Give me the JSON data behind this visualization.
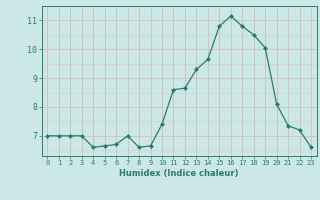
{
  "x": [
    0,
    1,
    2,
    3,
    4,
    5,
    6,
    7,
    8,
    9,
    10,
    11,
    12,
    13,
    14,
    15,
    16,
    17,
    18,
    19,
    20,
    21,
    22,
    23
  ],
  "y": [
    7.0,
    7.0,
    7.0,
    7.0,
    6.6,
    6.65,
    6.7,
    7.0,
    6.6,
    6.65,
    7.4,
    8.6,
    8.65,
    9.3,
    9.65,
    10.8,
    11.15,
    10.8,
    10.5,
    10.05,
    8.1,
    7.35,
    7.2,
    6.6
  ],
  "xlim": [
    -0.5,
    23.5
  ],
  "ylim": [
    6.3,
    11.5
  ],
  "yticks": [
    7,
    8,
    9,
    10,
    11
  ],
  "xticks": [
    0,
    1,
    2,
    3,
    4,
    5,
    6,
    7,
    8,
    9,
    10,
    11,
    12,
    13,
    14,
    15,
    16,
    17,
    18,
    19,
    20,
    21,
    22,
    23
  ],
  "xlabel": "Humidex (Indice chaleur)",
  "line_color": "#2d7a6e",
  "marker_color": "#2d7a6e",
  "bg_color": "#cce8e6",
  "grid_color_minor": "#c4dede",
  "grid_color_major": "#c0b8c4",
  "axis_color": "#2d7a6e",
  "tick_label_color": "#2d7a6e",
  "xlabel_color": "#2d7a6e"
}
